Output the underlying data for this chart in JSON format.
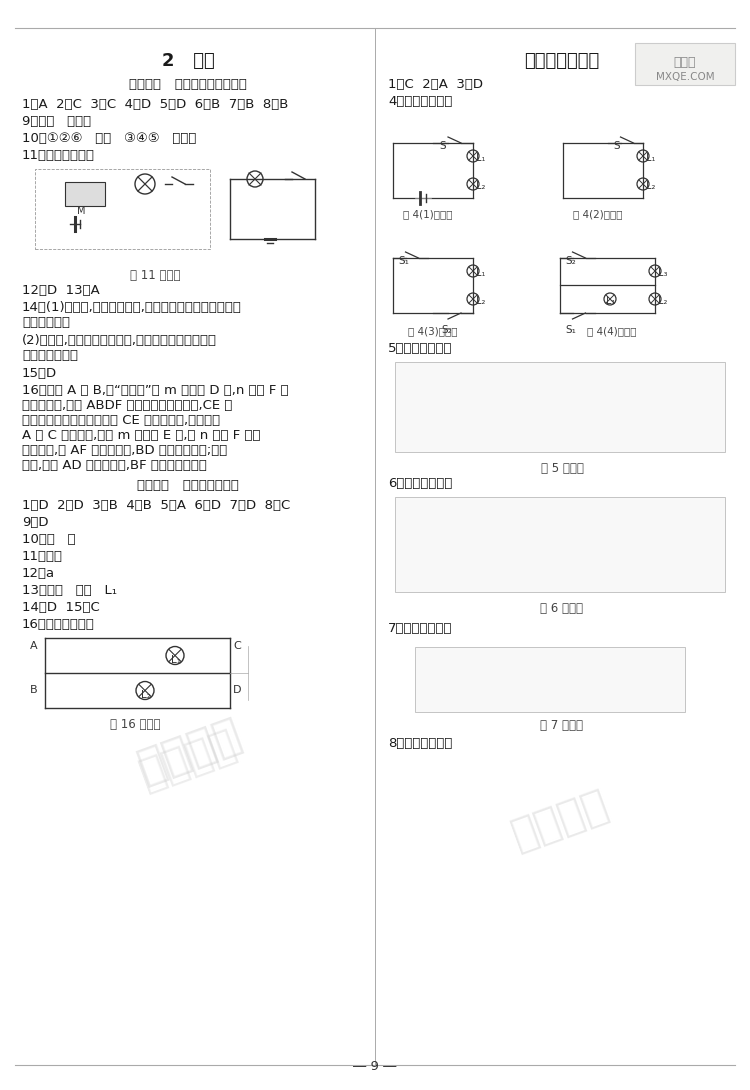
{
  "bg_color": "#ffffff",
  "title_left": "2   电路",
  "title_right": "周练小测（五）",
  "section1_title": "第１课时   导体、绁缘体和电路",
  "s1_a1": "1．A  2．C  3．C  4．D  5．D  6．B  7．B  8．B",
  "s1_a2": "9．电源   用电器",
  "s1_a3": "10．①②⑥   导体   ③④⑤   绁缘体",
  "s1_a4": "11．如答图所示。",
  "fig11_cap": "第 11 题答图",
  "s1_a12": "12．D  13．A",
  "s1_a14a": "14．(1)不正确,柄套是绁缘体,装上柄套主要是为了防止发",
  "s1_a14b": "生触电事故。",
  "s1_a14c": "(2)不正确,电线包层是绁缘体,主要是为了防止发生短",
  "s1_a14d": "路和触电事故。",
  "s1_a15": "15．D",
  "s1_a16a": "16．连接 A 和 B,将“测通器”的 m 连接在 D 上,n 连接 F 时",
  "s1_a16b": "小灯泡发光,说明 ABDF 所在的两根导线连通,CE 为",
  "s1_a16c": "另外的一根导线。现在知道 CE 为一根导线,下一步将",
  "s1_a16d": "A 和 C 连在一起,先把 m 连接在 E 上,若 n 连接 F 时小",
  "s1_a16e": "灯泡发光,则 AF 为一根导线,BD 为另一根导线;若灯",
  "s1_a16f": "不亮,说明 AD 为一根导线,BF 为另一根导线。",
  "section2_title": "第２课时   电路的连接方式",
  "s2_a1": "1．D  2．D  3．B  4．B  5．A  6．D  7．D  8．C",
  "s2_a9": "9．D",
  "s2_a10": "10．并   串",
  "s2_a11": "11．并联",
  "s2_a12": "12．a",
  "s2_a13": "13．并联   串联   L₁",
  "s2_a14": "14．D  15．C",
  "s2_a16": "16．如答图所示。",
  "fig16_cap": "第 16 题答图",
  "rc_a1": "1．C  2．A  3．D",
  "rc_a4": "4．如答图所示。",
  "fig4_1_cap": "第 4(1)题答图",
  "fig4_2_cap": "第 4(2)题答图",
  "fig4_3_cap": "第 4(3)题答图",
  "fig4_4_cap": "第 4(4)题答图",
  "rc_a5": "5．如答图所示。",
  "fig5_cap": "第 5 题答图",
  "rc_a6": "6．如答图所示。",
  "fig6_cap": "第 6 题答图",
  "rc_a7": "7．如答图所示。",
  "fig7_cap": "第 7 题答图",
  "rc_a8": "8．如答图所示。",
  "page_num": "― 9 ―",
  "wm_left": "作业辅灵",
  "wm_right": "作业辅灵",
  "wm3": "作业辅灵",
  "logo_text1": "答案君",
  "logo_text2": "MXQE.COM",
  "text_color": "#1a1a1a",
  "gray": "#555555",
  "light_gray": "#888888",
  "caption_color": "#444444"
}
